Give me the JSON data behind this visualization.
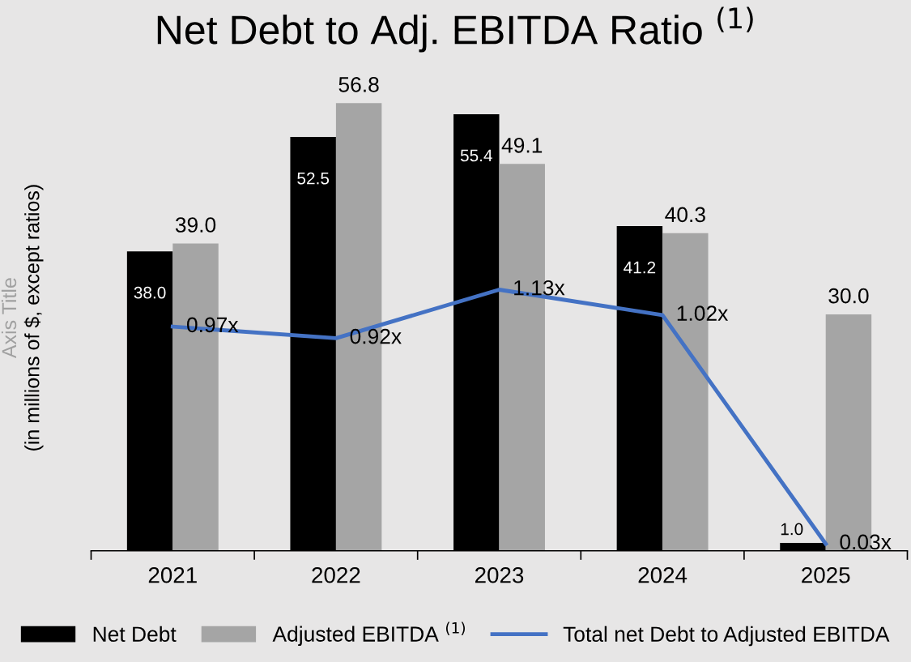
{
  "chart_data": {
    "type": "bar",
    "title": "Net Debt to Adj. EBITDA Ratio $^{(1)}$",
    "ylabel": "(in millions of $, except ratios)",
    "annotations": [
      "Axis Title"
    ],
    "categories": [
      "2021",
      "2022",
      "2023",
      "2024",
      "2025"
    ],
    "series": [
      {
        "name": "Net Debt",
        "color": "#000000",
        "values": [
          38.0,
          52.5,
          55.4,
          41.2,
          1.0
        ],
        "value_labels": [
          "38.0",
          "52.5",
          "55.4",
          "41.2",
          "1.0"
        ]
      },
      {
        "name": "Adjusted EBITDA $^{(1)}$",
        "color": "#a5a5a5",
        "values": [
          39.0,
          56.8,
          49.1,
          40.3,
          30.0
        ],
        "value_labels": [
          "39.0",
          "56.8",
          "49.1",
          "40.3",
          "30.0"
        ]
      },
      {
        "name": "Total net Debt to Adjusted EBITDA",
        "type": "line",
        "axis": "y2",
        "color": "#4472c4",
        "values": [
          0.97,
          0.92,
          1.13,
          1.02,
          0.03
        ],
        "value_labels": [
          "0.97x",
          "0.92x",
          "1.13x",
          "1.02x",
          "0.03x"
        ]
      }
    ],
    "tick_labels": "x",
    "legend": "bottom",
    "grid": false
  }
}
